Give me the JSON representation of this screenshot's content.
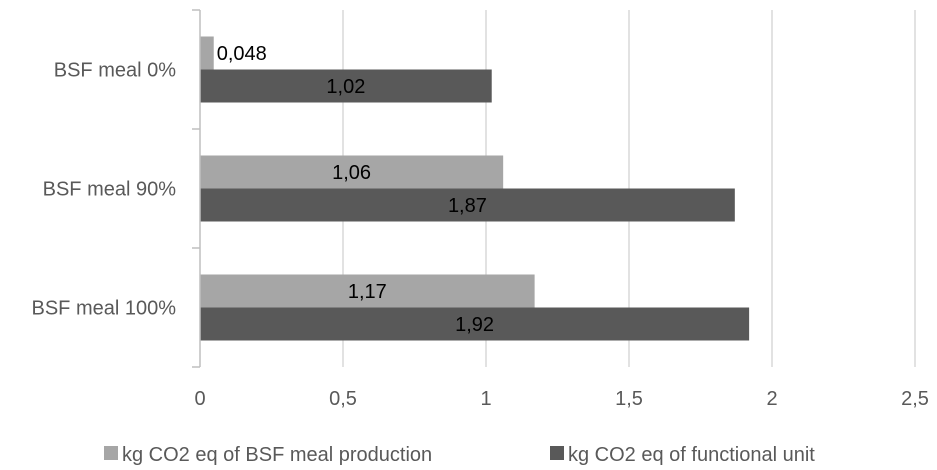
{
  "chart_data": {
    "type": "bar",
    "orientation": "horizontal",
    "categories": [
      "BSF meal 0%",
      "BSF meal 90%",
      "BSF meal 100%"
    ],
    "series": [
      {
        "name": "kg CO2 eq of BSF meal production",
        "values": [
          0.048,
          1.06,
          1.17
        ],
        "labels": [
          "0,048",
          "1,06",
          "1,17"
        ],
        "color": "#a6a6a6"
      },
      {
        "name": "kg CO2 eq of functional unit",
        "values": [
          1.02,
          1.87,
          1.92
        ],
        "labels": [
          "1,02",
          "1,87",
          "1,92"
        ],
        "color": "#595959"
      }
    ],
    "xlim": [
      0,
      2.5
    ],
    "xticks": [
      0,
      0.5,
      1,
      1.5,
      2,
      2.5
    ],
    "xtick_labels": [
      "0",
      "0,5",
      "1",
      "1,5",
      "2",
      "2,5"
    ],
    "grid": "vertical",
    "legend": "bottom",
    "title": "",
    "xlabel": "",
    "ylabel": ""
  }
}
